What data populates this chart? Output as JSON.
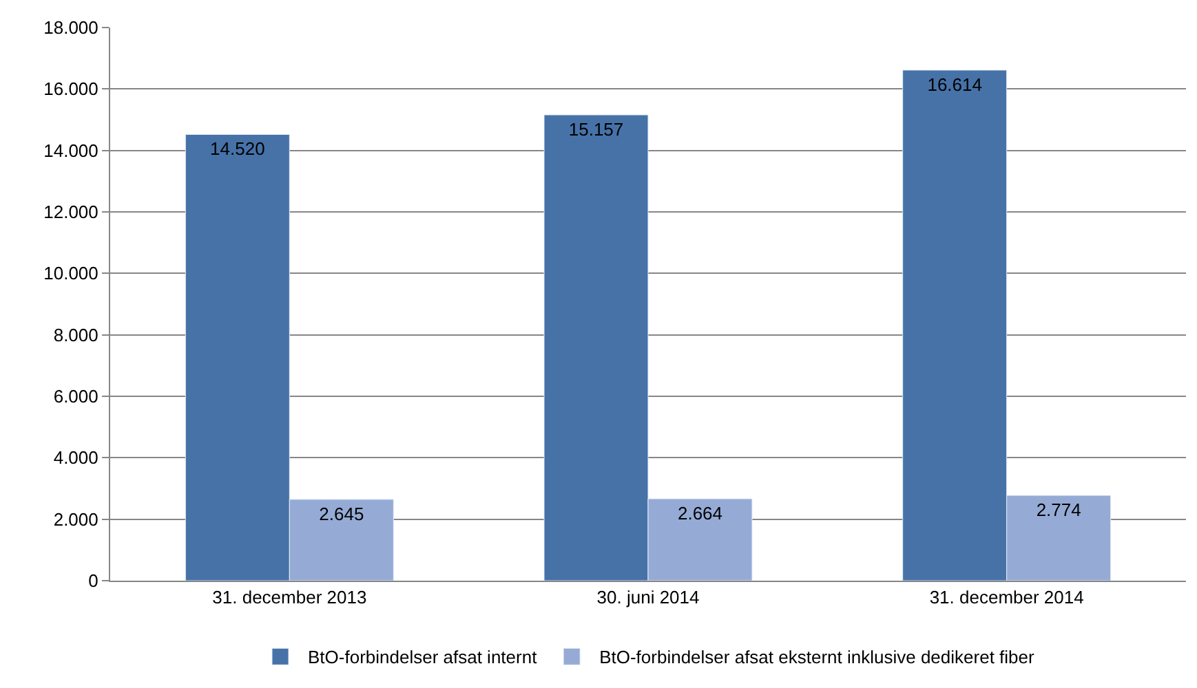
{
  "chart_data": {
    "type": "bar",
    "categories": [
      "31. december 2013",
      "30. juni 2014",
      "31. december 2014"
    ],
    "series": [
      {
        "name": "BtO-forbindelser afsat internt",
        "color": "#4672a8",
        "values": [
          14520,
          15157,
          16614
        ],
        "value_labels": [
          "14.520",
          "15.157",
          "16.614"
        ]
      },
      {
        "name": "BtO-forbindelser afsat eksternt inklusive dedikeret fiber",
        "color": "#95abd6",
        "values": [
          2645,
          2664,
          2774
        ],
        "value_labels": [
          "2.645",
          "2.664",
          "2.774"
        ]
      }
    ],
    "ylim": [
      0,
      18000
    ],
    "yticks": [
      0,
      {
        "value": 2000,
        "label": "2.000"
      },
      {
        "value": 4000,
        "label": "4.000"
      },
      {
        "value": 6000,
        "label": "6.000"
      },
      {
        "value": 8000,
        "label": "8.000"
      },
      {
        "value": 10000,
        "label": "10.000"
      },
      {
        "value": 12000,
        "label": "12.000"
      },
      {
        "value": 14000,
        "label": "14.000"
      },
      {
        "value": 16000,
        "label": "16.000"
      },
      {
        "value": 18000,
        "label": "18.000"
      }
    ],
    "grid": "y",
    "legend": "bottom"
  }
}
